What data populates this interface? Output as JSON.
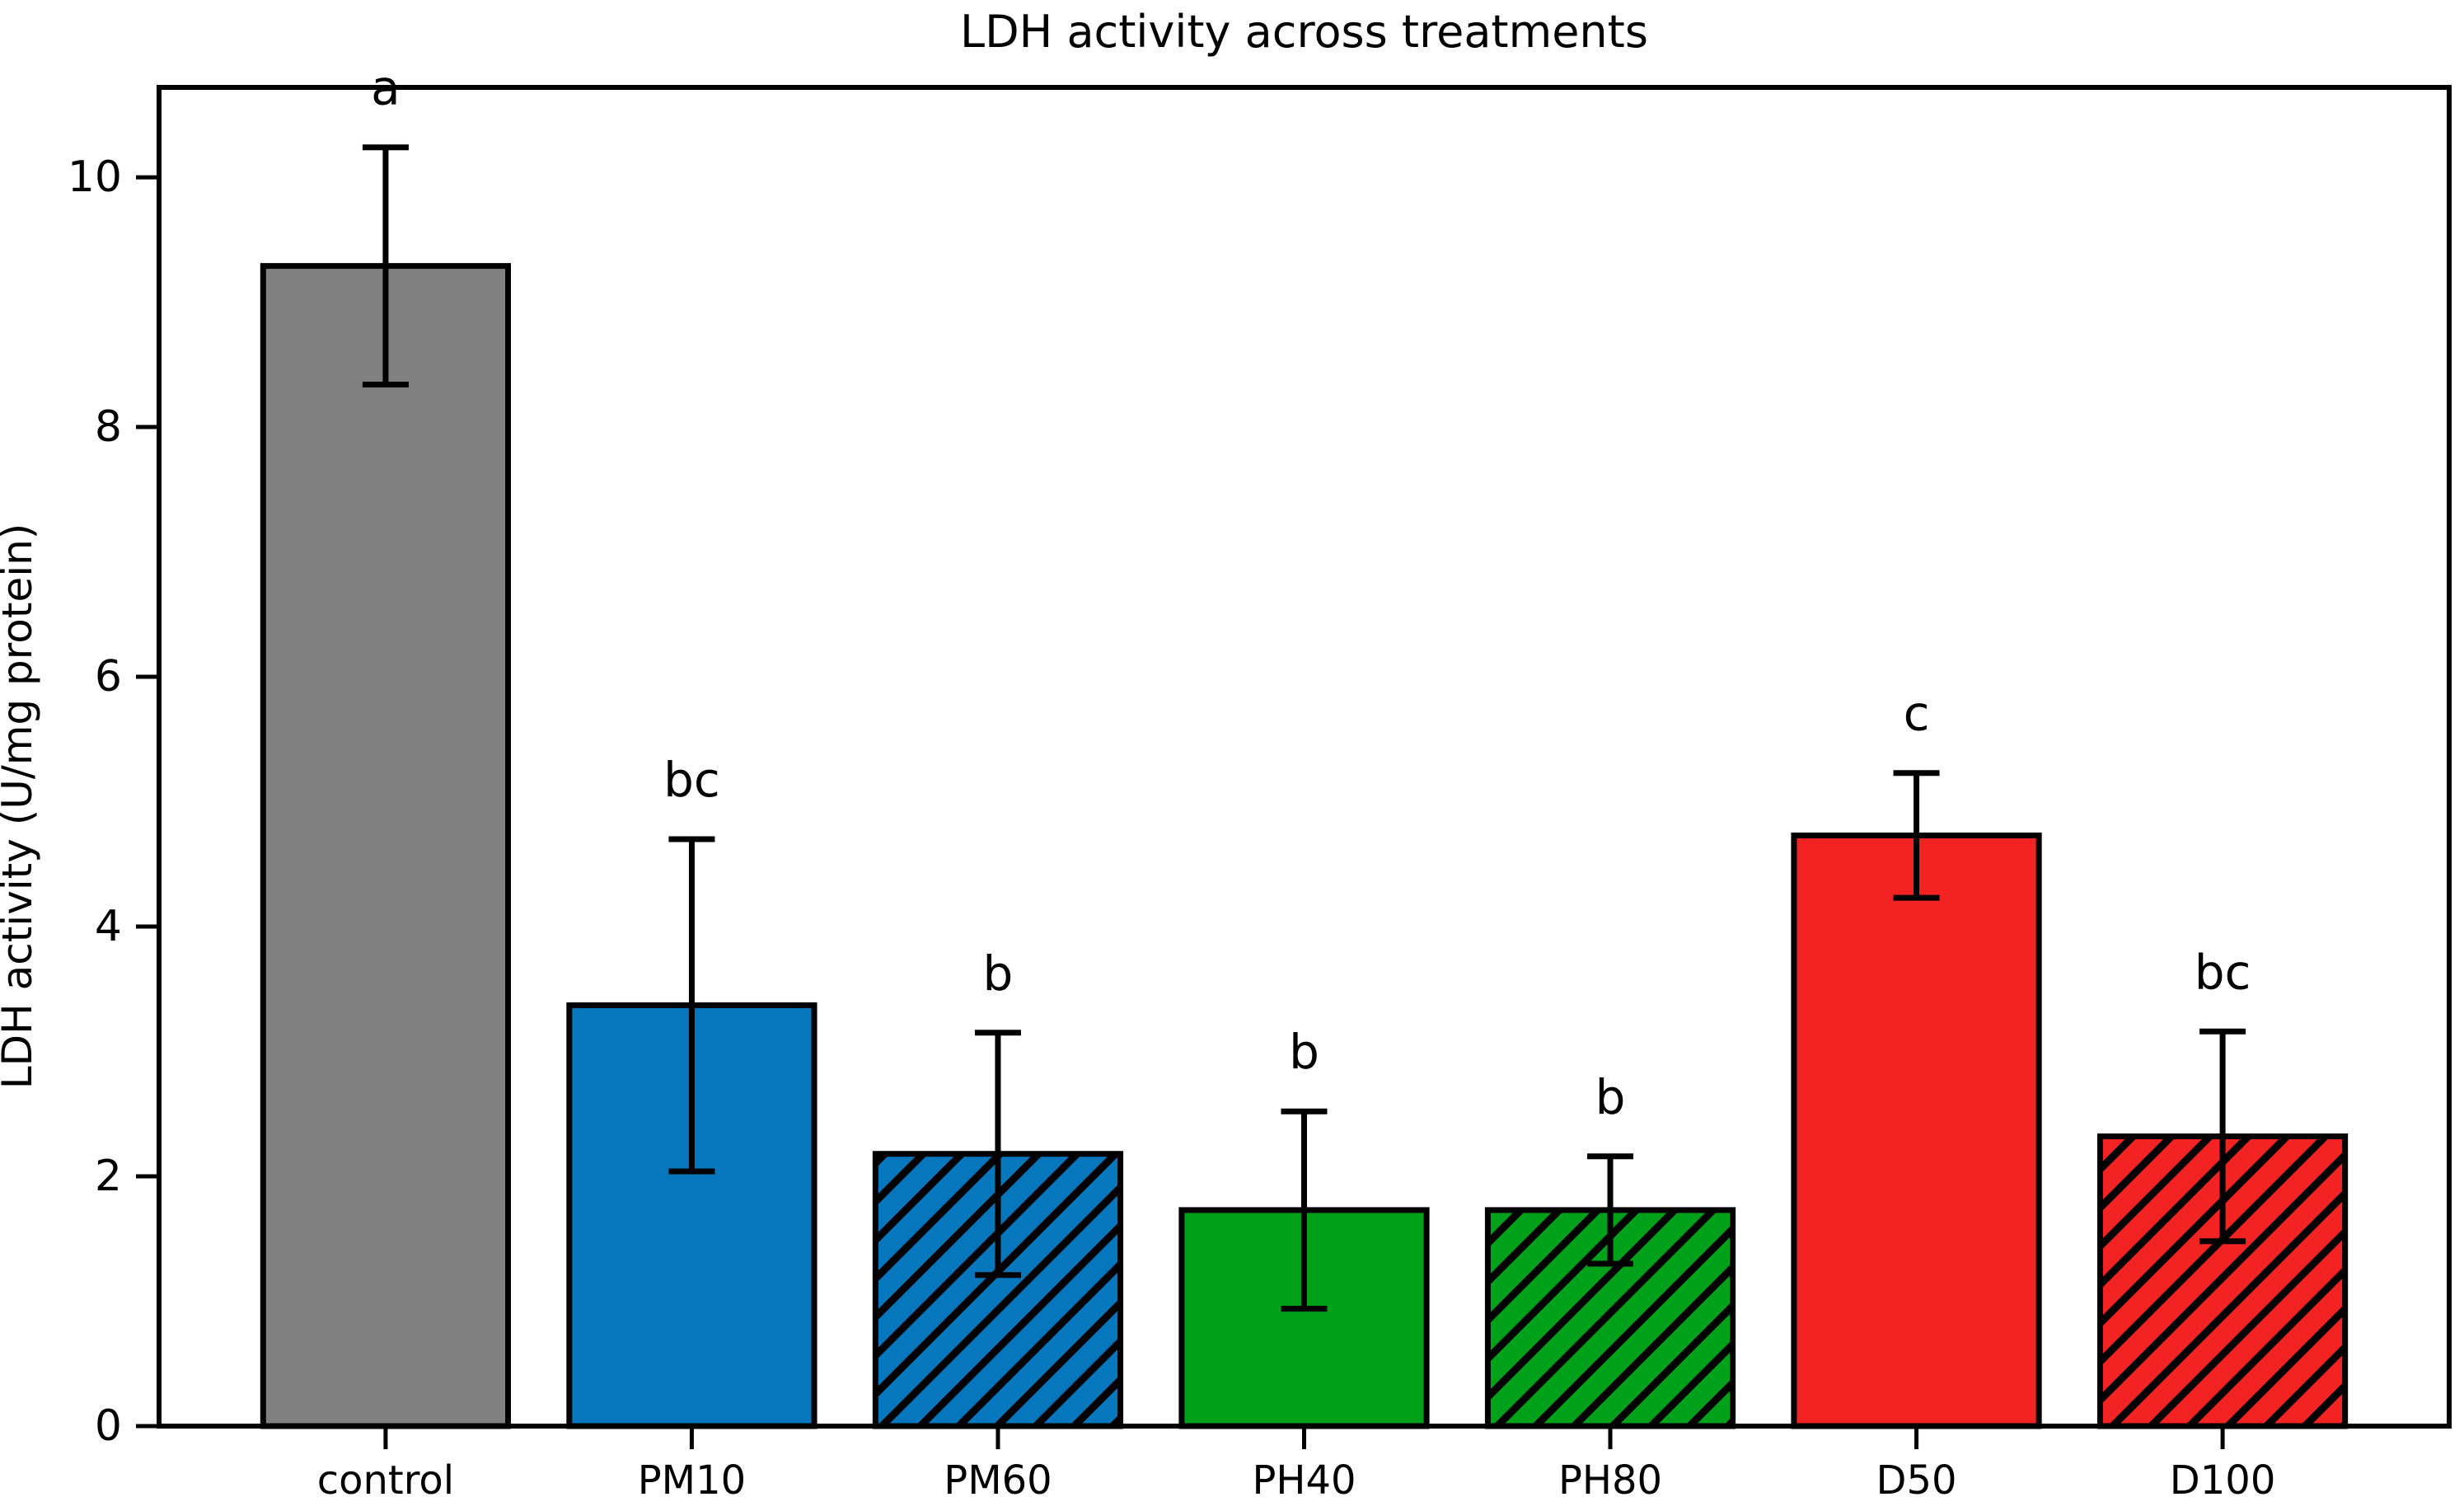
{
  "chart_data": {
    "type": "bar",
    "title": "LDH activity across treatments",
    "xlabel": "",
    "ylabel": "LDH activity (U/mg protein)",
    "categories": [
      "control",
      "PM10",
      "PM60",
      "PH40",
      "PH80",
      "D50",
      "D100"
    ],
    "values": [
      9.29,
      3.37,
      2.18,
      1.73,
      1.73,
      4.73,
      2.32
    ],
    "errors": [
      0.95,
      1.33,
      0.97,
      0.79,
      0.43,
      0.5,
      0.84
    ],
    "sig_letters": [
      "a",
      "bc",
      "b",
      "b",
      "b",
      "c",
      "bc"
    ],
    "bar_colors": [
      "#808080",
      "#0777bd",
      "#0777bd",
      "#00a11a",
      "#00a11a",
      "#f42323",
      "#f42323"
    ],
    "hatched": [
      false,
      false,
      true,
      false,
      true,
      false,
      true
    ],
    "hatch_style": "/",
    "edge_color": "#000000",
    "error_color": "#000000",
    "yticks": [
      0,
      2,
      4,
      6,
      8,
      10
    ],
    "ylim": [
      0,
      10.72
    ],
    "grid": false,
    "legend_position": "none"
  }
}
